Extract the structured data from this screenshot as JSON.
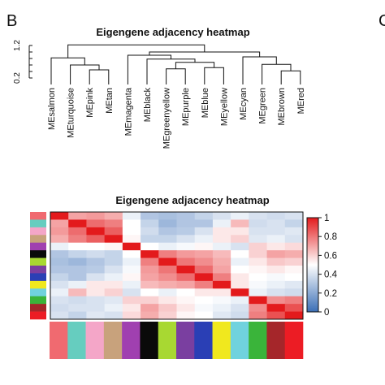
{
  "figure": {
    "panel_letter": "B",
    "next_panel_letter": "C",
    "dendrogram_title": "Eigengene adjacency heatmap",
    "heatmap_title": "Eigengene adjacency heatmap"
  },
  "chart_data": [
    {
      "type": "dendrogram",
      "title": "Eigengene adjacency heatmap",
      "y_ticks": [
        "0.2",
        "1.2"
      ],
      "ylim": [
        0.2,
        1.3
      ],
      "leaves": [
        {
          "label": "MEsalmon",
          "color": "#f06a70"
        },
        {
          "label": "MEturquoise",
          "color": "#66cdbf"
        },
        {
          "label": "MEpink",
          "color": "#f4a6c8"
        },
        {
          "label": "MEtan",
          "color": "#c8a27c"
        },
        {
          "label": "MEmagenta",
          "color": "#a040b0"
        },
        {
          "label": "MEblack",
          "color": "#0a0a0a"
        },
        {
          "label": "MEgreenyellow",
          "color": "#a8d832"
        },
        {
          "label": "MEpurple",
          "color": "#7a3fa0"
        },
        {
          "label": "MEblue",
          "color": "#2a3fb5"
        },
        {
          "label": "MEyellow",
          "color": "#f0e81e"
        },
        {
          "label": "MEcyan",
          "color": "#70d2de"
        },
        {
          "label": "MEgreen",
          "color": "#3ab43a"
        },
        {
          "label": "MEbrown",
          "color": "#a5262a"
        },
        {
          "label": "MEred",
          "color": "#ec1c24"
        }
      ],
      "merges": [
        {
          "a": 2,
          "b": 3,
          "height": 0.45
        },
        {
          "a": 1,
          "b": "m0",
          "height": 0.6
        },
        {
          "a": 0,
          "b": "m1",
          "height": 0.82
        },
        {
          "a": 6,
          "b": 7,
          "height": 0.48
        },
        {
          "a": 8,
          "b": 9,
          "height": 0.52
        },
        {
          "a": "m3",
          "b": "m4",
          "height": 0.68
        },
        {
          "a": 5,
          "b": "m5",
          "height": 0.78
        },
        {
          "a": 4,
          "b": "m6",
          "height": 0.9
        },
        {
          "a": 12,
          "b": 13,
          "height": 0.42
        },
        {
          "a": 11,
          "b": "m8",
          "height": 0.62
        },
        {
          "a": 10,
          "b": "m9",
          "height": 0.85
        },
        {
          "a": "m7",
          "b": "m10",
          "height": 1.0
        },
        {
          "a": "m2",
          "b": "m11",
          "height": 1.22
        }
      ]
    },
    {
      "type": "heatmap",
      "title": "Eigengene adjacency heatmap",
      "rows": [
        "MEsalmon",
        "MEturquoise",
        "MEpink",
        "MEtan",
        "MEmagenta",
        "MEblack",
        "MEgreenyellow",
        "MEpurple",
        "MEblue",
        "MEyellow",
        "MEcyan",
        "MEgreen",
        "MEbrown",
        "MEred"
      ],
      "columns": [
        "MEsalmon",
        "MEturquoise",
        "MEpink",
        "MEtan",
        "MEmagenta",
        "MEblack",
        "MEgreenyellow",
        "MEpurple",
        "MEblue",
        "MEyellow",
        "MEcyan",
        "MEgreen",
        "MEbrown",
        "MEred"
      ],
      "values": [
        [
          1.0,
          0.7,
          0.72,
          0.68,
          0.45,
          0.3,
          0.28,
          0.3,
          0.35,
          0.4,
          0.45,
          0.4,
          0.38,
          0.4
        ],
        [
          0.7,
          1.0,
          0.82,
          0.78,
          0.5,
          0.35,
          0.25,
          0.3,
          0.3,
          0.45,
          0.65,
          0.38,
          0.4,
          0.35
        ],
        [
          0.72,
          0.82,
          1.0,
          0.85,
          0.5,
          0.38,
          0.3,
          0.32,
          0.4,
          0.55,
          0.55,
          0.4,
          0.4,
          0.42
        ],
        [
          0.68,
          0.78,
          0.85,
          1.0,
          0.52,
          0.35,
          0.35,
          0.4,
          0.45,
          0.55,
          0.6,
          0.42,
          0.45,
          0.4
        ],
        [
          0.45,
          0.5,
          0.5,
          0.52,
          1.0,
          0.5,
          0.45,
          0.48,
          0.52,
          0.45,
          0.4,
          0.6,
          0.55,
          0.58
        ],
        [
          0.3,
          0.35,
          0.38,
          0.35,
          0.5,
          1.0,
          0.78,
          0.72,
          0.7,
          0.65,
          0.5,
          0.6,
          0.7,
          0.68
        ],
        [
          0.28,
          0.25,
          0.3,
          0.35,
          0.45,
          0.78,
          1.0,
          0.8,
          0.75,
          0.68,
          0.45,
          0.55,
          0.62,
          0.6
        ],
        [
          0.3,
          0.3,
          0.32,
          0.4,
          0.48,
          0.72,
          0.8,
          1.0,
          0.82,
          0.7,
          0.5,
          0.52,
          0.55,
          0.52
        ],
        [
          0.35,
          0.3,
          0.4,
          0.45,
          0.52,
          0.7,
          0.75,
          0.82,
          1.0,
          0.78,
          0.55,
          0.5,
          0.48,
          0.5
        ],
        [
          0.4,
          0.45,
          0.55,
          0.55,
          0.45,
          0.65,
          0.68,
          0.7,
          0.78,
          1.0,
          0.55,
          0.48,
          0.45,
          0.42
        ],
        [
          0.45,
          0.65,
          0.55,
          0.6,
          0.4,
          0.5,
          0.45,
          0.5,
          0.55,
          0.55,
          1.0,
          0.45,
          0.4,
          0.38
        ],
        [
          0.4,
          0.38,
          0.4,
          0.42,
          0.6,
          0.6,
          0.55,
          0.52,
          0.5,
          0.48,
          0.45,
          1.0,
          0.75,
          0.78
        ],
        [
          0.38,
          0.4,
          0.4,
          0.45,
          0.55,
          0.7,
          0.62,
          0.55,
          0.48,
          0.45,
          0.4,
          0.75,
          1.0,
          0.88
        ],
        [
          0.4,
          0.35,
          0.42,
          0.4,
          0.58,
          0.68,
          0.6,
          0.52,
          0.5,
          0.42,
          0.38,
          0.78,
          0.88,
          1.0
        ]
      ],
      "colorbar": {
        "ticks": [
          "0",
          "0.2",
          "0.4",
          "0.6",
          "0.8",
          "1"
        ],
        "range": [
          0,
          1
        ],
        "colors": [
          "#3b6fb6",
          "#ffffff",
          "#e31a1c"
        ]
      }
    }
  ]
}
